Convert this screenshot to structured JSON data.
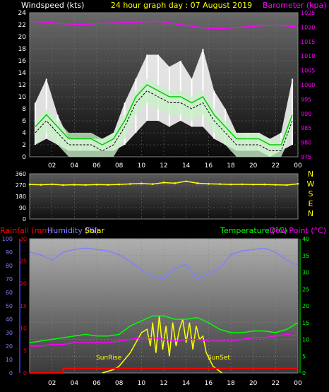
{
  "header": {
    "windspeed_label": "Windspeed (kts)",
    "title": "24 hour graph day : 07 August 2019",
    "barometer_label": "Barometer (kpa)"
  },
  "lower_header": {
    "rainfall_label": "Rainfall (mm)",
    "humidity_label": "Humidity (%)",
    "solar_label": "Solar",
    "temperature_label": "Temperature (°C)",
    "dewpoint_label": "Dew Point (°C)"
  },
  "sun_labels": {
    "sunrise": "SunRise",
    "sunset": "SunSet"
  },
  "compass_labels": [
    "N",
    "W",
    "S",
    "E",
    "N"
  ],
  "colors": {
    "windspeed": "#ffffff",
    "gust_area": "#ffffff",
    "avg_wind_fill": "#c8f0c8",
    "avg_wind_line": "#00cc00",
    "wind_mean": "#000000",
    "barometer": "#ff00ff",
    "direction": "#ffff00",
    "rainfall": "#ff0000",
    "humidity": "#8080ff",
    "solar": "#ffff00",
    "temperature": "#00ff00",
    "dewpoint": "#ff00ff",
    "title": "#ffff00"
  },
  "chart_data": [
    {
      "type": "line",
      "name": "wind-barometer",
      "x_ticks": [
        "02",
        "04",
        "06",
        "08",
        "10",
        "12",
        "14",
        "16",
        "18",
        "20",
        "22",
        "00"
      ],
      "x_range_hours": [
        0,
        24
      ],
      "left_axis": {
        "ticks": [
          0,
          2,
          4,
          6,
          8,
          10,
          12,
          14,
          16,
          18,
          20,
          22,
          24
        ],
        "ylim": [
          0,
          24
        ]
      },
      "right_axis": {
        "ticks": [
          975,
          980,
          985,
          990,
          995,
          1000,
          1005,
          1010,
          1015,
          1020,
          1025
        ],
        "ylim": [
          975,
          1025
        ]
      },
      "wind_hours": [
        0.5,
        1.5,
        2.5,
        3.5,
        4.5,
        5.5,
        6.5,
        7.5,
        8.5,
        9.5,
        10.5,
        11.5,
        12.5,
        13.5,
        14.5,
        15.5,
        16.5,
        17.5,
        18.5,
        19.5,
        20.5,
        21.5,
        22.5,
        23.5
      ],
      "gust_max": [
        9,
        13,
        7,
        3,
        3,
        3,
        3,
        4,
        9,
        13,
        17,
        17,
        15,
        16,
        13,
        18,
        11,
        8,
        4,
        4,
        4,
        3,
        4,
        13
      ],
      "gust_min": [
        2,
        3,
        2,
        1,
        1,
        1,
        1,
        1,
        2,
        4,
        6,
        6,
        5,
        6,
        5,
        5,
        3,
        2,
        1,
        1,
        1,
        0,
        1,
        2
      ],
      "avg_wind": [
        4,
        6,
        4,
        2,
        2,
        2,
        1,
        2,
        5,
        9,
        11,
        10,
        9,
        9,
        8,
        9,
        6,
        4,
        2,
        2,
        2,
        1,
        1,
        6
      ],
      "baro_hours": [
        0,
        1,
        2,
        3,
        4,
        5,
        6,
        7,
        8,
        9,
        10,
        11,
        12,
        13,
        14,
        15,
        16,
        17,
        18,
        19,
        20,
        21,
        22,
        23,
        24
      ],
      "barometer": [
        1022,
        1021.8,
        1021.5,
        1021.2,
        1021,
        1021,
        1021.2,
        1021.4,
        1021.5,
        1021.6,
        1021.8,
        1022,
        1021.8,
        1021.2,
        1020.6,
        1020,
        1019.6,
        1019.5,
        1019.7,
        1020,
        1020.3,
        1020.5,
        1020.6,
        1020.4,
        1020
      ]
    },
    {
      "type": "scatter",
      "name": "wind-direction",
      "x_range_hours": [
        0,
        24
      ],
      "axis": {
        "ticks": [
          0,
          90,
          180,
          270,
          360
        ],
        "ylim": [
          0,
          360
        ]
      },
      "hours": [
        0,
        1,
        2,
        3,
        4,
        5,
        6,
        7,
        8,
        9,
        10,
        11,
        12,
        13,
        14,
        15,
        16,
        17,
        18,
        19,
        20,
        21,
        22,
        23,
        24
      ],
      "direction": [
        275,
        272,
        276,
        270,
        273,
        271,
        274,
        272,
        275,
        279,
        283,
        278,
        290,
        285,
        300,
        285,
        280,
        278,
        275,
        276,
        274,
        275,
        272,
        270,
        280
      ]
    },
    {
      "type": "line",
      "name": "rain-humidity-solar-temperature",
      "x_ticks": [
        "02",
        "04",
        "06",
        "08",
        "10",
        "12",
        "14",
        "16",
        "18",
        "20",
        "22",
        "00"
      ],
      "x_range_hours": [
        0,
        24
      ],
      "humidity_axis": {
        "ticks": [
          0,
          10,
          20,
          30,
          40,
          50,
          60,
          70,
          80,
          90,
          100
        ],
        "ylim": [
          0,
          100
        ]
      },
      "rainfall_axis": {
        "ticks": [
          0,
          5,
          10,
          15,
          20,
          25,
          30
        ],
        "ylim": [
          0,
          30
        ]
      },
      "temperature_axis": {
        "ticks": [
          0,
          5,
          10,
          15,
          20,
          25,
          30,
          35,
          40
        ],
        "ylim": [
          0,
          40
        ]
      },
      "hours": [
        0,
        1,
        2,
        3,
        4,
        5,
        6,
        7,
        8,
        9,
        10,
        11,
        12,
        13,
        14,
        15,
        16,
        17,
        18,
        19,
        20,
        21,
        22,
        23,
        24
      ],
      "humidity": [
        90,
        88,
        84,
        90,
        92,
        93,
        92,
        91,
        88,
        83,
        77,
        72,
        70,
        78,
        81,
        70,
        74,
        78,
        88,
        91,
        92,
        93,
        90,
        84,
        80
      ],
      "temperature": [
        9,
        9.5,
        10,
        10.5,
        11,
        11.5,
        11,
        11,
        11.5,
        14,
        15.5,
        17,
        17,
        16,
        16,
        16.5,
        15,
        13,
        12,
        12,
        12.5,
        12.5,
        12,
        13,
        15
      ],
      "dewpoint": [
        8,
        8,
        8.5,
        8.5,
        9,
        9,
        9,
        9,
        9.5,
        10,
        10.5,
        10.5,
        10,
        9.5,
        10,
        10,
        9.5,
        9.5,
        9.5,
        10,
        10.5,
        10.5,
        11,
        11.5,
        11
      ],
      "rainfall": [
        0,
        0,
        0,
        1,
        1,
        1,
        1,
        1,
        1,
        1,
        1,
        1,
        1,
        1,
        1,
        1,
        1,
        1,
        1,
        1,
        1,
        1,
        1,
        1,
        1
      ],
      "solar_hours": [
        6.5,
        7,
        7.5,
        8,
        8.5,
        9,
        9.5,
        10,
        10.5,
        10.8,
        11,
        11.3,
        11.6,
        11.9,
        12.2,
        12.5,
        12.8,
        13.1,
        13.4,
        13.7,
        14,
        14.3,
        14.6,
        14.9,
        15.2,
        15.5,
        15.8,
        16.1,
        16.4,
        16.8,
        17.2
      ],
      "solar": [
        0,
        0.5,
        1,
        2,
        4,
        6,
        9,
        12,
        13,
        8,
        15,
        6,
        17,
        7,
        14,
        5,
        15,
        8,
        13,
        16,
        9,
        15,
        7,
        14,
        10,
        11,
        6,
        4,
        2,
        1,
        0
      ],
      "solar_axis_note": "solar drawn on temperature axis scale"
    }
  ]
}
